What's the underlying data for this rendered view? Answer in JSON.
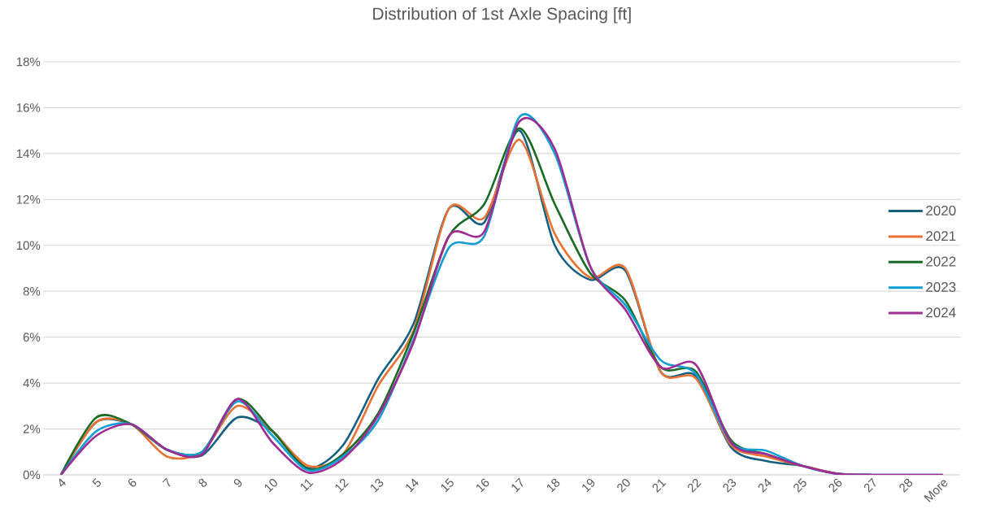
{
  "chart_data": {
    "type": "line",
    "title": "Distribution of 1st Axle Spacing [ft]",
    "categories": [
      "4",
      "5",
      "6",
      "7",
      "8",
      "9",
      "10",
      "11",
      "12",
      "13",
      "14",
      "15",
      "16",
      "17",
      "18",
      "19",
      "20",
      "21",
      "22",
      "23",
      "24",
      "25",
      "26",
      "27",
      "28",
      "More"
    ],
    "series": [
      {
        "name": "2020",
        "color": "#156082",
        "values": [
          0,
          2.3,
          2.2,
          1.1,
          0.85,
          2.5,
          1.9,
          0.3,
          1.3,
          4.2,
          6.6,
          11.6,
          11.0,
          15.0,
          10.0,
          8.5,
          8.9,
          4.5,
          4.3,
          1.2,
          0.6,
          0.4,
          0.05,
          0,
          0,
          0
        ]
      },
      {
        "name": "2021",
        "color": "#e97132",
        "values": [
          0,
          2.3,
          2.2,
          0.8,
          1.0,
          3.0,
          1.9,
          0.4,
          0.9,
          3.9,
          6.3,
          11.6,
          11.2,
          14.6,
          10.5,
          8.6,
          9.0,
          4.5,
          4.2,
          1.3,
          0.8,
          0.4,
          0.05,
          null,
          null,
          null
        ]
      },
      {
        "name": "2022",
        "color": "#196b24",
        "values": [
          0,
          2.5,
          2.2,
          1.1,
          1.0,
          3.3,
          1.9,
          0.25,
          0.9,
          2.7,
          6.2,
          10.4,
          11.8,
          15.1,
          11.8,
          8.8,
          7.6,
          4.7,
          4.5,
          1.5,
          0.9,
          0.4,
          null,
          null,
          null,
          null
        ]
      },
      {
        "name": "2023",
        "color": "#0f9ed5",
        "values": [
          0,
          1.9,
          2.2,
          1.1,
          1.0,
          3.2,
          1.7,
          0.2,
          0.8,
          2.4,
          5.9,
          9.9,
          10.4,
          15.6,
          14.0,
          9.1,
          7.4,
          5.0,
          4.4,
          1.4,
          1.05,
          0.4,
          0.05,
          0,
          null,
          null
        ]
      },
      {
        "name": "2024",
        "color": "#a02b93",
        "values": [
          0,
          1.7,
          2.2,
          1.1,
          0.9,
          3.3,
          1.4,
          0.1,
          0.7,
          2.6,
          5.8,
          10.4,
          10.6,
          15.4,
          14.2,
          9.1,
          7.2,
          4.7,
          4.8,
          1.4,
          0.9,
          0.4,
          0.05,
          0,
          0,
          0
        ]
      }
    ],
    "ylim": [
      0,
      18
    ],
    "yticks": [
      {
        "value": 0,
        "label": "0%"
      },
      {
        "value": 2,
        "label": "2%"
      },
      {
        "value": 4,
        "label": "4%"
      },
      {
        "value": 6,
        "label": "6%"
      },
      {
        "value": 8,
        "label": "8%"
      },
      {
        "value": 10,
        "label": "10%"
      },
      {
        "value": 12,
        "label": "12%"
      },
      {
        "value": 14,
        "label": "14%"
      },
      {
        "value": 16,
        "label": "16%"
      },
      {
        "value": 18,
        "label": "18%"
      }
    ],
    "grid": "y",
    "legend": "right",
    "marker": "none",
    "line_style": "solid"
  }
}
